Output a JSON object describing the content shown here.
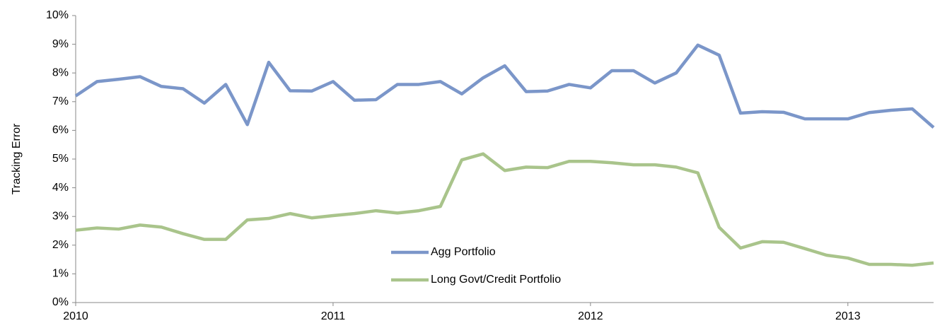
{
  "chart_data": {
    "type": "line",
    "y_label": "Tracking Error",
    "x": [
      2010,
      2010.083,
      2010.167,
      2010.25,
      2010.333,
      2010.417,
      2010.5,
      2010.583,
      2010.667,
      2010.75,
      2010.833,
      2010.917,
      2011,
      2011.083,
      2011.167,
      2011.25,
      2011.333,
      2011.417,
      2011.5,
      2011.583,
      2011.667,
      2011.75,
      2011.833,
      2011.917,
      2012,
      2012.083,
      2012.167,
      2012.25,
      2012.333,
      2012.417,
      2012.5,
      2012.583,
      2012.667,
      2012.75,
      2012.833,
      2012.917,
      2013,
      2013.083,
      2013.167,
      2013.25,
      2013.333
    ],
    "series": [
      {
        "name": "Agg Portfolio",
        "color": "#7b96c9",
        "values": [
          7.2,
          7.7,
          7.78,
          7.87,
          7.53,
          7.45,
          6.95,
          7.6,
          6.2,
          8.37,
          7.38,
          7.37,
          7.7,
          7.05,
          7.07,
          7.6,
          7.6,
          7.7,
          7.27,
          7.83,
          8.25,
          7.35,
          7.37,
          7.6,
          7.48,
          8.08,
          8.08,
          7.65,
          8.0,
          8.97,
          8.62,
          6.6,
          6.65,
          6.63,
          6.4,
          6.4,
          6.4,
          6.62,
          6.7,
          6.75,
          6.1
        ]
      },
      {
        "name": "Long Govt/Credit Portfolio",
        "color": "#a9c48b",
        "values": [
          2.52,
          2.6,
          2.56,
          2.7,
          2.63,
          2.4,
          2.2,
          2.2,
          2.88,
          2.93,
          3.1,
          2.95,
          3.03,
          3.1,
          3.2,
          3.12,
          3.2,
          3.35,
          4.97,
          5.18,
          4.6,
          4.72,
          4.7,
          4.92,
          4.92,
          4.87,
          4.8,
          4.8,
          4.72,
          4.52,
          2.62,
          1.9,
          2.12,
          2.1,
          1.88,
          1.65,
          1.55,
          1.33,
          1.33,
          1.3,
          1.38
        ]
      }
    ],
    "xlim": [
      2010,
      2013.333
    ],
    "xticks": [
      2010,
      2011,
      2012,
      2013
    ],
    "ylim": [
      0,
      10
    ],
    "yticks": [
      {
        "value": 0,
        "label": "0%"
      },
      {
        "value": 1,
        "label": "1%"
      },
      {
        "value": 2,
        "label": "2%"
      },
      {
        "value": 3,
        "label": "3%"
      },
      {
        "value": 4,
        "label": "4%"
      },
      {
        "value": 5,
        "label": "5%"
      },
      {
        "value": 6,
        "label": "6%"
      },
      {
        "value": 7,
        "label": "7%"
      },
      {
        "value": 8,
        "label": "8%"
      },
      {
        "value": 9,
        "label": "9%"
      },
      {
        "value": 10,
        "label": "10%"
      }
    ],
    "grid": false
  }
}
